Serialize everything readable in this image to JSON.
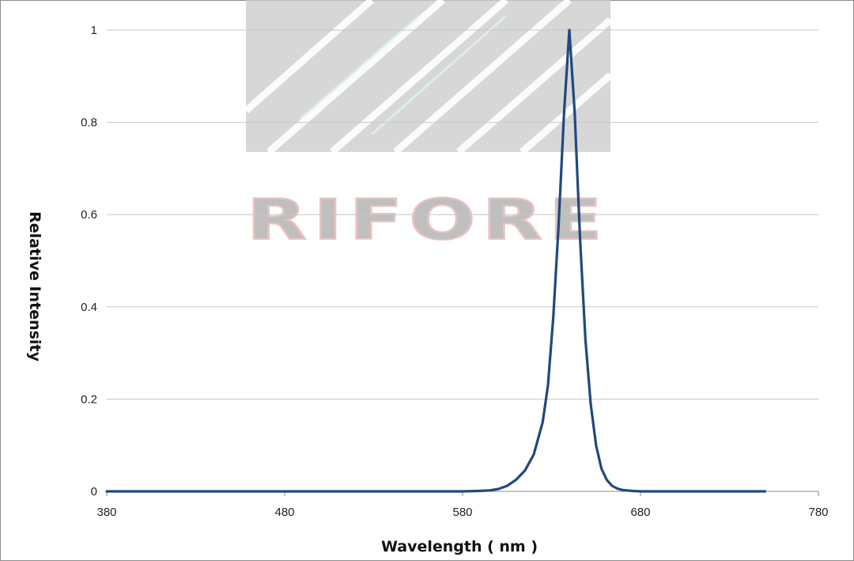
{
  "chart_data": {
    "type": "line",
    "title": "",
    "xlabel": "Wavelength ( nm )",
    "ylabel": "Relative  Intensity",
    "xlim": [
      380,
      780
    ],
    "ylim": [
      0,
      1
    ],
    "x_ticks": [
      380,
      480,
      580,
      680,
      780
    ],
    "y_ticks": [
      0,
      0.2,
      0.4,
      0.6,
      0.8,
      1
    ],
    "y_tick_labels": [
      "0",
      "0.2",
      "0.4",
      "0.6",
      "0.8",
      "1"
    ],
    "grid": "horizontal",
    "legend": "none",
    "series": [
      {
        "color": "#1f497d",
        "x": [
          380,
          400,
          420,
          440,
          460,
          480,
          500,
          520,
          540,
          560,
          580,
          590,
          595,
          600,
          605,
          610,
          615,
          620,
          625,
          628,
          631,
          634,
          637,
          640,
          643,
          646,
          649,
          652,
          655,
          658,
          661,
          664,
          667,
          670,
          675,
          680,
          690,
          700,
          720,
          740,
          750
        ],
        "y": [
          0,
          0,
          0,
          0,
          0,
          0,
          0,
          0,
          0,
          0,
          0,
          0.001,
          0.002,
          0.005,
          0.012,
          0.025,
          0.045,
          0.08,
          0.15,
          0.23,
          0.38,
          0.58,
          0.82,
          1.0,
          0.82,
          0.55,
          0.33,
          0.19,
          0.1,
          0.05,
          0.025,
          0.012,
          0.006,
          0.003,
          0.001,
          0,
          0,
          0,
          0,
          0,
          0
        ]
      }
    ]
  },
  "watermark": {
    "text": "RIFORE",
    "color": "#b5b5b5",
    "accent_color": "#e7b8b8"
  }
}
